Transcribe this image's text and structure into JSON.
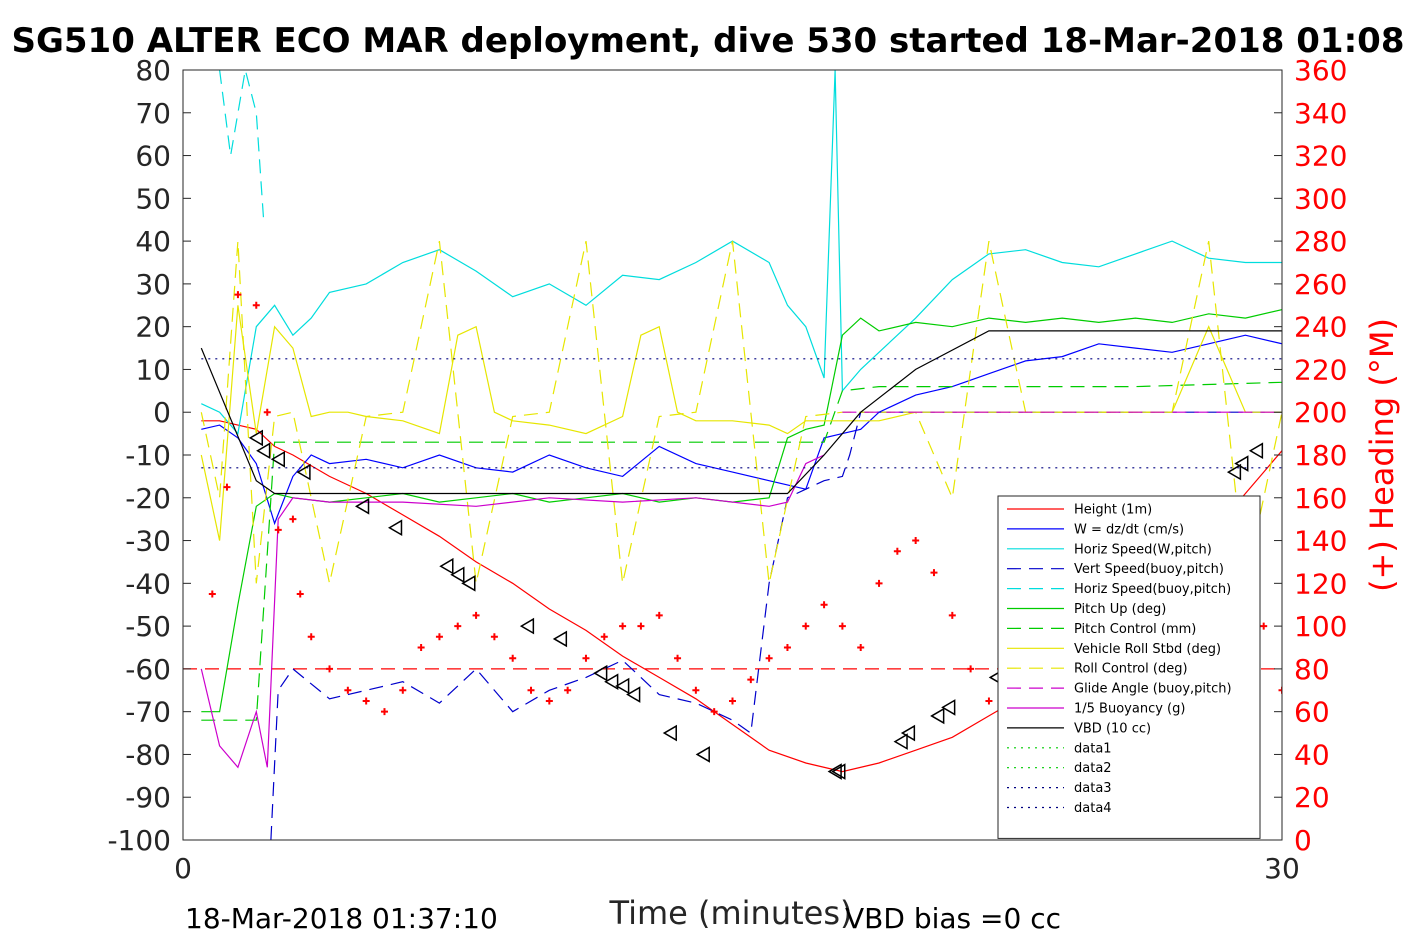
{
  "chart_data": {
    "type": "line",
    "title": "SG510 ALTER ECO MAR deployment, dive 530 started 18-Mar-2018 01:08",
    "xlabel": "Time (minutes)",
    "ylabel_right": "(+) Heading (°M)",
    "xlim": [
      0,
      30
    ],
    "ylim": [
      -100,
      80
    ],
    "ylim_right": [
      0,
      360
    ],
    "x_ticks": [
      "0",
      "30"
    ],
    "y_ticks": [
      "-100",
      "-90",
      "-80",
      "-70",
      "-60",
      "-50",
      "-40",
      "-30",
      "-20",
      "-10",
      "0",
      "10",
      "20",
      "30",
      "40",
      "50",
      "60",
      "70",
      "80"
    ],
    "y_ticks_right": [
      "0",
      "20",
      "40",
      "60",
      "80",
      "100",
      "120",
      "140",
      "160",
      "180",
      "200",
      "220",
      "240",
      "260",
      "280",
      "300",
      "320",
      "340",
      "360"
    ],
    "footer_left": "18-Mar-2018 01:37:10",
    "footer_right": "VBD bias =0 cc",
    "legend_position": "lower-right",
    "series": [
      {
        "name": "Height (1m)",
        "color": "#ff0000",
        "style": "solid",
        "x": [
          0.5,
          1.0,
          1.5,
          2.0,
          2.5,
          3.0,
          4.0,
          5.0,
          6.0,
          7.0,
          8.0,
          9.0,
          10.0,
          11.0,
          12.0,
          13.0,
          14.0,
          15.0,
          16.0,
          17.0,
          18.0,
          19.0,
          20.0,
          21.0,
          22.0,
          23.0,
          24.0,
          25.0,
          26.0,
          26.5,
          27.0,
          27.5,
          28.0,
          28.5,
          29.0,
          29.5,
          30.0,
          30.8
        ],
        "y": [
          -2,
          -2,
          -3,
          -4,
          -8,
          -10,
          -15,
          -19,
          -24,
          -29,
          -35,
          -40,
          -46,
          -51,
          -57,
          -62,
          -67,
          -73,
          -79,
          -82,
          -84,
          -82,
          -79,
          -76,
          -71,
          -66,
          -60,
          -53,
          -45,
          -41,
          -37,
          -33,
          -29,
          -24,
          -19,
          -14,
          -9,
          -1
        ]
      },
      {
        "name": "W = dz/dt (cm/s)",
        "color": "#0000ff",
        "style": "solid",
        "x": [
          0.5,
          1.0,
          1.5,
          2.0,
          2.5,
          3.0,
          3.5,
          4.0,
          5.0,
          6.0,
          7.0,
          8.0,
          9.0,
          10.0,
          11.0,
          12.0,
          13.0,
          14.0,
          15.0,
          16.0,
          17.0,
          17.5,
          18.0,
          18.5,
          19.0,
          20.0,
          21.0,
          22.0,
          23.0,
          24.0,
          25.0,
          26.0,
          27.0,
          28.0,
          29.0,
          30.0,
          30.8
        ],
        "y": [
          -4,
          -3,
          -6,
          -12,
          -26,
          -15,
          -10,
          -12,
          -11,
          -13,
          -10,
          -13,
          -14,
          -10,
          -13,
          -15,
          -8,
          -12,
          -14,
          -16,
          -18,
          -6,
          -5,
          -4,
          0,
          4,
          6,
          9,
          12,
          13,
          16,
          15,
          14,
          16,
          18,
          16,
          12
        ]
      },
      {
        "name": "Horiz Speed(W,pitch)",
        "color": "#00dddd",
        "style": "solid",
        "x": [
          0.5,
          1.0,
          1.5,
          2.0,
          2.5,
          3.0,
          3.5,
          4.0,
          5.0,
          6.0,
          7.0,
          8.0,
          9.0,
          10.0,
          11.0,
          12.0,
          13.0,
          14.0,
          15.0,
          16.0,
          16.5,
          17.0,
          17.5,
          17.8,
          18.0,
          18.5,
          19.0,
          20.0,
          21.0,
          22.0,
          23.0,
          24.0,
          25.0,
          26.0,
          27.0,
          28.0,
          29.0,
          30.0,
          30.8
        ],
        "y": [
          2,
          0,
          -5,
          20,
          25,
          18,
          22,
          28,
          30,
          35,
          38,
          33,
          27,
          30,
          25,
          32,
          31,
          35,
          40,
          35,
          25,
          20,
          8,
          80,
          5,
          10,
          14,
          22,
          31,
          37,
          38,
          35,
          34,
          37,
          40,
          36,
          35,
          35,
          20
        ]
      },
      {
        "name": "Vert Speed(buoy,pitch)",
        "color": "#0000cc",
        "style": "dashed",
        "x": [
          2.4,
          2.6,
          3.0,
          4.0,
          5.0,
          6.0,
          7.0,
          8.0,
          9.0,
          10.0,
          11.0,
          12.0,
          13.0,
          14.0,
          15.0,
          15.5,
          16.0,
          16.5,
          17.0,
          17.5,
          18.0,
          18.2,
          18.5,
          30.0,
          30.8
        ],
        "y": [
          -100,
          -65,
          -60,
          -67,
          -65,
          -63,
          -68,
          -60,
          -70,
          -65,
          -62,
          -58,
          -66,
          -68,
          -72,
          -75,
          -40,
          -20,
          -18,
          -16,
          -15,
          -10,
          0,
          0,
          -15
        ]
      },
      {
        "name": "Horiz Speed(buoy,pitch)",
        "color": "#00dddd",
        "style": "dashed",
        "x": [
          1.0,
          1.3,
          1.7,
          2.0,
          2.2
        ],
        "y": [
          80,
          60,
          80,
          70,
          45
        ]
      },
      {
        "name": "Pitch Up (deg)",
        "color": "#00cc00",
        "style": "solid",
        "x": [
          0.5,
          1.0,
          1.5,
          2.0,
          2.5,
          3.0,
          4.0,
          5.0,
          6.0,
          7.0,
          8.0,
          9.0,
          10.0,
          11.0,
          12.0,
          13.0,
          14.0,
          15.0,
          16.0,
          16.5,
          17.0,
          17.5,
          18.0,
          18.5,
          19.0,
          20.0,
          21.0,
          22.0,
          23.0,
          24.0,
          25.0,
          26.0,
          27.0,
          28.0,
          29.0,
          30.0,
          30.8
        ],
        "y": [
          -70,
          -70,
          -45,
          -22,
          -19,
          -20,
          -21,
          -20,
          -19,
          -21,
          -20,
          -19,
          -21,
          -20,
          -19,
          -21,
          -20,
          -21,
          -20,
          -6,
          -4,
          -3,
          18,
          22,
          19,
          21,
          20,
          22,
          21,
          22,
          21,
          22,
          21,
          23,
          22,
          24,
          -6
        ]
      },
      {
        "name": "Pitch Control (mm)",
        "color": "#00cc00",
        "style": "dashed",
        "x": [
          0.5,
          2.0,
          2.5,
          4.0,
          8.0,
          12.0,
          16.0,
          17.5,
          18.0,
          19.0,
          22.0,
          26.0,
          30.0,
          30.8
        ],
        "y": [
          -72,
          -72,
          -7,
          -7,
          -7,
          -7,
          -7,
          -7,
          5,
          6,
          6,
          6,
          7,
          7
        ]
      },
      {
        "name": "Vehicle Roll Stbd (deg)",
        "color": "#e6e600",
        "style": "solid",
        "x": [
          0.5,
          1.0,
          1.5,
          2.0,
          2.5,
          3.0,
          3.5,
          4.0,
          4.5,
          5.0,
          6.0,
          7.0,
          7.5,
          8.0,
          8.5,
          9.0,
          10.0,
          11.0,
          12.0,
          12.5,
          13.0,
          13.5,
          14.0,
          15.0,
          16.0,
          16.5,
          17.0,
          18.0,
          19.0,
          20.0,
          21.0,
          22.0,
          23.0,
          24.0,
          25.0,
          26.0,
          27.0,
          28.0,
          29.0,
          30.0,
          30.8
        ],
        "y": [
          -10,
          -30,
          25,
          -5,
          20,
          15,
          -1,
          0,
          0,
          -1,
          -2,
          -5,
          18,
          20,
          0,
          -2,
          -3,
          -5,
          -1,
          18,
          20,
          0,
          -2,
          -2,
          -3,
          -5,
          -2,
          -2,
          -2,
          0,
          0,
          0,
          0,
          0,
          0,
          0,
          0,
          20,
          0,
          0,
          0
        ]
      },
      {
        "name": "Roll Control (deg)",
        "color": "#e6e600",
        "style": "dashed",
        "x": [
          0.5,
          1.0,
          1.5,
          2.0,
          2.5,
          3.0,
          4.0,
          5.0,
          6.0,
          7.0,
          8.0,
          9.0,
          10.0,
          11.0,
          12.0,
          13.0,
          14.0,
          15.0,
          16.0,
          17.0,
          18.0,
          19.0,
          20.0,
          21.0,
          22.0,
          23.0,
          24.0,
          25.0,
          26.0,
          27.0,
          28.0,
          29.0,
          30.0,
          30.8
        ],
        "y": [
          0,
          -20,
          40,
          -40,
          -1,
          0,
          -40,
          -1,
          0,
          40,
          -40,
          -1,
          0,
          40,
          -40,
          -1,
          0,
          40,
          -40,
          -1,
          0,
          0,
          0,
          -20,
          40,
          0,
          0,
          0,
          0,
          0,
          40,
          -40,
          0,
          0
        ]
      },
      {
        "name": "Glide Angle (buoy,pitch)",
        "color": "#cc00cc",
        "style": "dashed",
        "x": [
          18.0,
          20.0,
          24.0,
          28.0,
          30.8
        ],
        "y": [
          0,
          0,
          0,
          0,
          0
        ]
      },
      {
        "name": "1/5 Buoyancy (g)",
        "color": "#cc00cc",
        "style": "solid",
        "x": [
          0.5,
          1.0,
          1.5,
          2.0,
          2.3,
          2.6,
          3.0,
          4.0,
          6.0,
          8.0,
          10.0,
          12.0,
          14.0,
          16.0,
          16.5,
          17.0,
          17.5
        ],
        "y": [
          -60,
          -78,
          -83,
          -70,
          -83,
          -25,
          -20,
          -21,
          -21,
          -22,
          -20,
          -21,
          -20,
          -22,
          -21,
          -12,
          -10
        ]
      },
      {
        "name": "VBD (10 cc)",
        "color": "#000000",
        "style": "solid",
        "x": [
          0.5,
          2.0,
          2.5,
          6.0,
          10.0,
          14.0,
          16.0,
          16.5,
          17.5,
          18.5,
          20.0,
          22.0,
          26.0,
          30.8
        ],
        "y": [
          15,
          -16,
          -19,
          -19,
          -19,
          -19,
          -19,
          -19,
          -10,
          0,
          10,
          19,
          19,
          19
        ]
      },
      {
        "name": "data1",
        "color": "#00cc00",
        "style": "dotted",
        "x": [],
        "y": []
      },
      {
        "name": "data2",
        "color": "#00cc00",
        "style": "dotted",
        "x": [],
        "y": []
      },
      {
        "name": "data3",
        "color": "#000080",
        "style": "dotted",
        "x": [
          0.5,
          30.8
        ],
        "y": [
          12.5,
          12.5
        ]
      },
      {
        "name": "data4",
        "color": "#000080",
        "style": "dotted",
        "x": [
          0.5,
          30.8
        ],
        "y": [
          -13,
          -13
        ]
      }
    ],
    "heading_reference": {
      "color": "#ff0000",
      "style": "dashed",
      "y": 80
    },
    "heading_points": {
      "color": "#ff0000",
      "marker": "+",
      "x": [
        0.8,
        1.2,
        1.5,
        2.0,
        2.3,
        2.6,
        3.0,
        3.2,
        3.5,
        4.0,
        4.5,
        5.0,
        5.5,
        6.0,
        6.5,
        7.0,
        7.5,
        8.0,
        8.5,
        9.0,
        9.5,
        10.0,
        10.5,
        11.0,
        11.5,
        12.0,
        12.5,
        13.0,
        13.5,
        14.0,
        14.5,
        15.0,
        15.5,
        16.0,
        16.5,
        17.0,
        17.5,
        18.0,
        18.5,
        19.0,
        19.5,
        20.0,
        20.5,
        21.0,
        21.5,
        22.0,
        22.5,
        23.0,
        23.5,
        24.0,
        24.5,
        25.0,
        25.5,
        26.0,
        26.5,
        27.0,
        27.5,
        28.0,
        28.5,
        29.0,
        29.5,
        30.0,
        30.4,
        30.8
      ],
      "y": [
        115,
        165,
        255,
        250,
        200,
        145,
        150,
        115,
        95,
        80,
        70,
        65,
        60,
        70,
        90,
        95,
        100,
        105,
        95,
        85,
        70,
        65,
        70,
        85,
        95,
        100,
        100,
        105,
        85,
        70,
        60,
        65,
        75,
        85,
        90,
        100,
        110,
        100,
        90,
        120,
        135,
        140,
        125,
        105,
        80,
        65,
        60,
        65,
        70,
        80,
        90,
        85,
        75,
        70,
        60,
        55,
        60,
        80,
        85,
        95,
        100,
        70,
        80,
        45
      ]
    },
    "direction_markers": {
      "color": "#000000",
      "marker": "left-triangle",
      "x": [
        2.0,
        2.2,
        2.6,
        3.3,
        4.9,
        5.8,
        7.2,
        7.5,
        7.8,
        9.4,
        10.3,
        11.4,
        11.7,
        12.0,
        12.3,
        13.3,
        14.2,
        17.8,
        17.9,
        19.6,
        19.8,
        20.6,
        20.9,
        22.2,
        23.4,
        26.0,
        26.2,
        27.1,
        28.7,
        28.9,
        29.3,
        30.8
      ],
      "y": [
        -6,
        -9,
        -11,
        -14,
        -22,
        -27,
        -36,
        -38,
        -40,
        -50,
        -53,
        -61,
        -63,
        -64,
        -66,
        -75,
        -80,
        -84,
        -84,
        -77,
        -75,
        -71,
        -69,
        -62,
        -55,
        -35,
        -33,
        -24,
        -14,
        -12,
        -9,
        -1
      ]
    }
  }
}
